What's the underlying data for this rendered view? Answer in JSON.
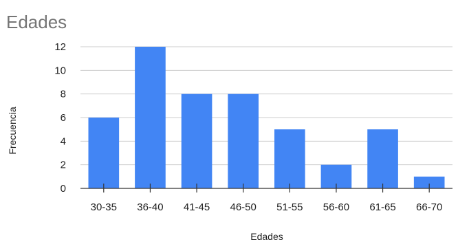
{
  "chart_data": {
    "type": "bar",
    "title": "Edades",
    "xlabel": "Edades",
    "ylabel": "Frecuencia",
    "categories": [
      "30-35",
      "36-40",
      "41-45",
      "46-50",
      "51-55",
      "56-60",
      "61-65",
      "66-70"
    ],
    "values": [
      6,
      12,
      8,
      8,
      5,
      2,
      5,
      1
    ],
    "ylim": [
      0,
      12
    ],
    "yticks": [
      0,
      2,
      4,
      6,
      8,
      10,
      12
    ],
    "grid": true,
    "bar_color": "#4285f4",
    "legend": "none"
  }
}
